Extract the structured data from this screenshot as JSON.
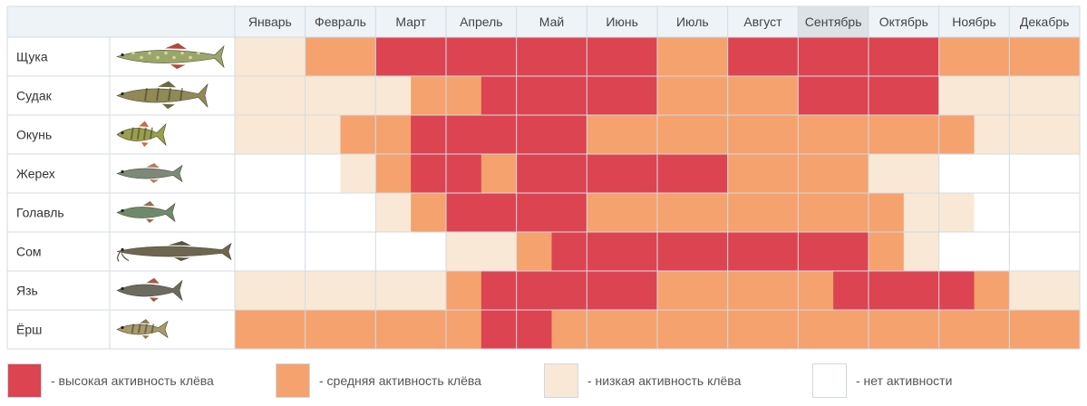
{
  "chart_data": {
    "type": "heatmap",
    "months": [
      "Январь",
      "Февраль",
      "Март",
      "Апрель",
      "Май",
      "Июнь",
      "Июль",
      "Август",
      "Сентябрь",
      "Октябрь",
      "Ноябрь",
      "Декабрь"
    ],
    "highlighted_month": "Сентябрь",
    "level_colors": {
      "0": "#ffffff",
      "1": "#f9e8d5",
      "2": "#f5a26f",
      "3": "#dc4451"
    },
    "fish": [
      {
        "name": "Щука",
        "icon": "pike-icon",
        "halves": [
          1,
          1,
          2,
          2,
          3,
          3,
          3,
          3,
          3,
          3,
          3,
          3,
          2,
          2,
          3,
          3,
          3,
          3,
          3,
          3,
          2,
          2,
          2,
          2
        ]
      },
      {
        "name": "Судак",
        "icon": "zander-icon",
        "halves": [
          1,
          1,
          1,
          1,
          1,
          2,
          2,
          3,
          3,
          3,
          3,
          3,
          2,
          2,
          2,
          2,
          3,
          3,
          3,
          3,
          1,
          1,
          1,
          1
        ]
      },
      {
        "name": "Окунь",
        "icon": "perch-icon",
        "halves": [
          1,
          1,
          1,
          2,
          2,
          3,
          3,
          3,
          3,
          3,
          2,
          2,
          2,
          2,
          2,
          2,
          2,
          2,
          2,
          2,
          2,
          1,
          1,
          1
        ]
      },
      {
        "name": "Жерех",
        "icon": "asp-icon",
        "halves": [
          0,
          0,
          0,
          1,
          2,
          3,
          3,
          2,
          3,
          3,
          3,
          3,
          3,
          3,
          2,
          2,
          2,
          2,
          1,
          1,
          0,
          0,
          0,
          0
        ]
      },
      {
        "name": "Голавль",
        "icon": "chub-icon",
        "halves": [
          0,
          0,
          0,
          0,
          1,
          2,
          3,
          3,
          3,
          3,
          2,
          2,
          2,
          2,
          2,
          2,
          2,
          2,
          2,
          1,
          1,
          0,
          0,
          0
        ]
      },
      {
        "name": "Сом",
        "icon": "catfish-icon",
        "halves": [
          0,
          0,
          0,
          0,
          0,
          0,
          1,
          1,
          2,
          3,
          3,
          3,
          3,
          3,
          3,
          3,
          3,
          3,
          2,
          1,
          0,
          0,
          0,
          0
        ]
      },
      {
        "name": "Язь",
        "icon": "ide-icon",
        "halves": [
          1,
          1,
          1,
          1,
          1,
          1,
          2,
          3,
          3,
          3,
          3,
          3,
          2,
          2,
          2,
          2,
          2,
          3,
          3,
          3,
          3,
          2,
          1,
          1
        ]
      },
      {
        "name": "Ёрш",
        "icon": "ruffe-icon",
        "halves": [
          2,
          2,
          2,
          2,
          2,
          2,
          2,
          3,
          3,
          2,
          2,
          2,
          2,
          2,
          2,
          2,
          2,
          2,
          2,
          2,
          2,
          2,
          2,
          2
        ]
      }
    ],
    "legend": [
      {
        "level": 3,
        "label": "- высокая активность клёва"
      },
      {
        "level": 2,
        "label": "- средняя активность клёва"
      },
      {
        "level": 1,
        "label": "- низкая активность клёва"
      },
      {
        "level": 0,
        "label": "- нет активности"
      }
    ]
  }
}
